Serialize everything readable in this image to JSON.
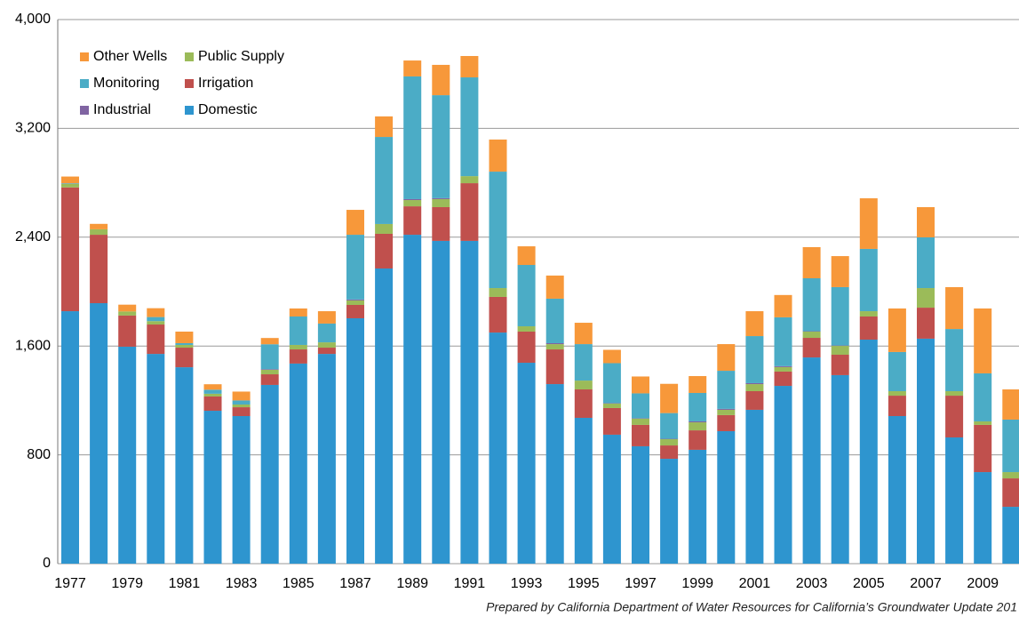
{
  "chart_data": {
    "type": "stacked-bar",
    "footer": "Prepared by California Department of Water Resources for California’s Groundwater Update 201",
    "categories": [
      "1977",
      null,
      "1979",
      null,
      "1981",
      null,
      "1983",
      null,
      "1985",
      null,
      "1987",
      null,
      "1989",
      null,
      "1991",
      null,
      "1993",
      null,
      "1995",
      null,
      "1997",
      null,
      "1999",
      null,
      "2001",
      null,
      "2003",
      null,
      "2005",
      null,
      "2007",
      null,
      "2009",
      null
    ],
    "series": [
      {
        "name": "Other Wells",
        "color": "#f7983a",
        "values": [
          50,
          40,
          50,
          65,
          85,
          40,
          65,
          46,
          59,
          91,
          183,
          151,
          117,
          223,
          157,
          236,
          137,
          170,
          157,
          98,
          124,
          215,
          124,
          196,
          183,
          164,
          229,
          228,
          372,
          320,
          222,
          308,
          477,
          222
        ]
      },
      {
        "name": "Monitoring",
        "color": "#4bacc6",
        "values": [
          5,
          0,
          0,
          30,
          13,
          30,
          30,
          183,
          209,
          138,
          476,
          640,
          902,
          757,
          726,
          856,
          451,
          327,
          268,
          294,
          183,
          189,
          209,
          280,
          346,
          359,
          389,
          429,
          458,
          288,
          373,
          457,
          353,
          386
        ]
      },
      {
        "name": "Industrial",
        "color": "#8064a2",
        "values": [
          0,
          0,
          0,
          0,
          0,
          0,
          0,
          5,
          0,
          0,
          7,
          0,
          7,
          7,
          0,
          0,
          0,
          7,
          0,
          3,
          3,
          3,
          7,
          7,
          7,
          7,
          3,
          3,
          0,
          0,
          0,
          0,
          0,
          0
        ]
      },
      {
        "name": "Public Supply",
        "color": "#9bbb59",
        "values": [
          25,
          40,
          30,
          25,
          20,
          20,
          20,
          33,
          33,
          39,
          33,
          72,
          46,
          59,
          52,
          65,
          39,
          39,
          65,
          33,
          46,
          46,
          59,
          39,
          52,
          33,
          46,
          65,
          39,
          33,
          144,
          33,
          26,
          46
        ]
      },
      {
        "name": "Irrigation",
        "color": "#c0504d",
        "values": [
          910,
          503,
          229,
          216,
          144,
          105,
          65,
          78,
          104,
          46,
          98,
          255,
          209,
          248,
          424,
          262,
          229,
          255,
          209,
          196,
          157,
          98,
          143,
          118,
          137,
          105,
          144,
          150,
          170,
          150,
          228,
          307,
          347,
          209
        ]
      },
      {
        "name": "Domestic",
        "color": "#2e95cf",
        "values": [
          1856,
          1915,
          1595,
          1542,
          1444,
          1124,
          1085,
          1314,
          1471,
          1542,
          1804,
          2170,
          2418,
          2373,
          2373,
          1699,
          1477,
          1320,
          1072,
          948,
          863,
          771,
          837,
          974,
          1131,
          1307,
          1516,
          1386,
          1647,
          1085,
          1654,
          928,
          673,
          418
        ]
      }
    ],
    "ylim": [
      0,
      4000
    ],
    "yticks": [
      0,
      800,
      {
        "value": 1600,
        "label": "1,600"
      },
      {
        "value": 2400,
        "label": "2,400"
      },
      {
        "value": 3200,
        "label": "3,200"
      },
      {
        "value": 4000,
        "label": "4,000"
      }
    ],
    "grid": true,
    "legend": "upper left"
  }
}
